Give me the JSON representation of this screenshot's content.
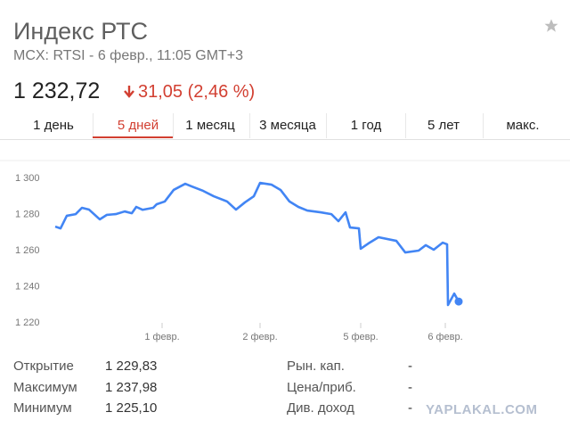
{
  "header": {
    "title": "Индекс РТС",
    "subtitle": "MCX: RTSI - 6 февр., 11:05 GMT+3",
    "price": "1 232,72",
    "change": "31,05 (2,46 %)"
  },
  "tabs": [
    "1 день",
    "5 дней",
    "1 месяц",
    "3 месяца",
    "1 год",
    "5 лет",
    "макс."
  ],
  "chart_data": {
    "type": "line",
    "x": [
      0,
      0.06,
      0.13,
      0.23,
      0.3,
      0.38,
      0.5,
      0.58,
      0.68,
      0.78,
      0.86,
      0.91,
      0.98,
      1.1,
      1.14,
      1.23,
      1.33,
      1.46,
      1.53,
      1.66,
      1.78,
      1.93,
      2.03,
      2.13,
      2.23,
      2.3,
      2.43,
      2.53,
      2.63,
      2.73,
      2.83,
      2.98,
      3.1,
      3.18,
      3.26,
      3.31,
      3.41,
      3.43,
      3.53,
      3.63,
      3.83,
      3.93,
      4.08,
      4.16,
      4.25,
      4.35,
      4.4,
      4.41,
      4.48,
      4.53
    ],
    "values": [
      1273.3,
      1272.3,
      1279.3,
      1280.2,
      1283.7,
      1282.7,
      1277.3,
      1279.8,
      1280.2,
      1281.7,
      1280.7,
      1284.2,
      1282.6,
      1283.7,
      1285.7,
      1287.2,
      1293.6,
      1297,
      1295.6,
      1293.1,
      1290.1,
      1287.2,
      1282.7,
      1286.7,
      1290.1,
      1297.5,
      1296.5,
      1293.6,
      1287.2,
      1284.2,
      1282.2,
      1281.2,
      1280.2,
      1276.3,
      1281.2,
      1272.8,
      1272.3,
      1261,
      1264.4,
      1267.4,
      1265.4,
      1259,
      1260,
      1263,
      1260.5,
      1264.4,
      1263.5,
      1229.9,
      1236.2,
      1231.8
    ],
    "color": "#4285f4",
    "xlim": [
      0,
      4.53
    ],
    "xticks": [
      {
        "value": 1.2,
        "label": "1 февр."
      },
      {
        "value": 2.3,
        "label": "2 февр."
      },
      {
        "value": 3.43,
        "label": "5 февр."
      },
      {
        "value": 4.38,
        "label": "6 февр."
      }
    ],
    "ylim": [
      1220,
      1300
    ],
    "yticks": [
      {
        "value": 1220,
        "label": "1 220"
      },
      {
        "value": 1240,
        "label": "1 240"
      },
      {
        "value": 1260,
        "label": "1 260"
      },
      {
        "value": 1280,
        "label": "1 280"
      },
      {
        "value": 1300,
        "label": "1 300"
      }
    ],
    "grid": false
  },
  "stats": {
    "left": [
      [
        "Открытие",
        "1 229,83"
      ],
      [
        "Максимум",
        "1 237,98"
      ],
      [
        "Минимум",
        "1 225,10"
      ]
    ],
    "right": [
      [
        "Рын. кап.",
        "-"
      ],
      [
        "Цена/приб.",
        "-"
      ],
      [
        "Див. доход",
        "-"
      ]
    ]
  },
  "watermark": "YAPLAKAL.COM"
}
